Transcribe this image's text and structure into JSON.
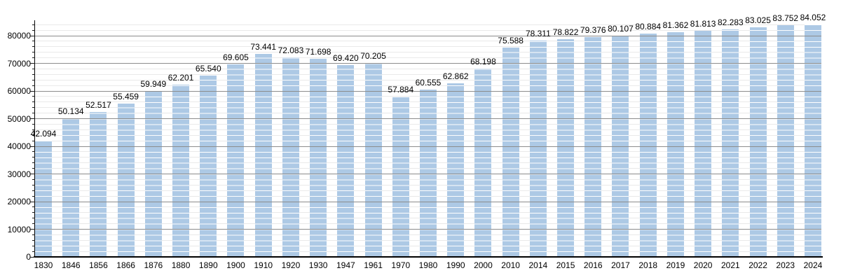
{
  "chart_data": {
    "type": "bar",
    "title": "",
    "xlabel": "",
    "ylabel": "",
    "legend": "none",
    "grid": "major+minor horizontal",
    "categories": [
      "1830",
      "1846",
      "1856",
      "1866",
      "1876",
      "1880",
      "1890",
      "1900",
      "1910",
      "1920",
      "1930",
      "1947",
      "1961",
      "1970",
      "1980",
      "1990",
      "2000",
      "2010",
      "2014",
      "2015",
      "2016",
      "2017",
      "2018",
      "2019",
      "2020",
      "2021",
      "2022",
      "2023",
      "2024"
    ],
    "values": [
      42094,
      50134,
      52517,
      55459,
      59949,
      62201,
      65540,
      69605,
      73441,
      72083,
      71698,
      69420,
      70205,
      57884,
      60555,
      62862,
      68198,
      75588,
      78311,
      78822,
      79376,
      80107,
      80884,
      81362,
      81813,
      82283,
      83025,
      83752,
      84052
    ],
    "value_labels": [
      "42.094",
      "50.134",
      "52.517",
      "55.459",
      "59.949",
      "62.201",
      "65.540",
      "69.605",
      "73.441",
      "72.083",
      "71.698",
      "69.420",
      "70.205",
      "57.884",
      "60.555",
      "62.862",
      "68.198",
      "75.588",
      "78.311",
      "78.822",
      "79.376",
      "80.107",
      "80.884",
      "81.362",
      "81.813",
      "82.283",
      "83.025",
      "83.752",
      "84.052"
    ],
    "y_tick_labels": [
      "0",
      "10000",
      "20000",
      "30000",
      "40000",
      "50000",
      "60000",
      "70000",
      "80000"
    ],
    "ylim": [
      0,
      85570
    ],
    "y_major_step": 10000,
    "y_minor_step": 2000,
    "colors": {
      "bar_fill": "#adc9e5",
      "bar_stripe": "rgba(255,255,255,0.92)",
      "major_grid": "#8c8c8c",
      "minor_grid": "#e9e9e9",
      "axis": "#000000",
      "text": "#000000",
      "background": "#ffffff"
    }
  }
}
